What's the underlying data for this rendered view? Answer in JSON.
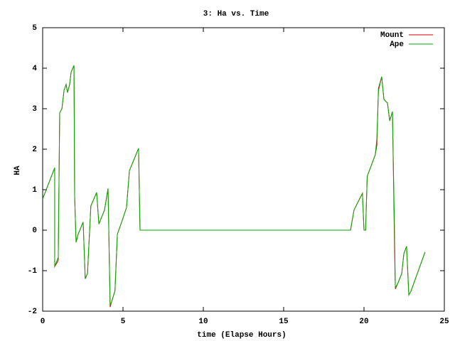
{
  "chart_data": {
    "type": "line",
    "title": "3: Ha vs. Time",
    "x_label": "time (Elapse Hours)",
    "y_label": "HA",
    "x": [
      0,
      0.75,
      0.75,
      0.97,
      1.06,
      1.2,
      1.33,
      1.46,
      1.55,
      1.68,
      1.77,
      1.95,
      1.99,
      2.08,
      2.21,
      2.52,
      2.65,
      2.79,
      3.0,
      3.36,
      3.5,
      3.85,
      4.07,
      4.2,
      4.29,
      4.5,
      4.65,
      4.96,
      5.22,
      5.4,
      5.97,
      6.06,
      19.16,
      19.38,
      19.9,
      20.0,
      20.1,
      20.2,
      20.7,
      20.8,
      20.9,
      21.1,
      21.24,
      21.46,
      21.6,
      21.77,
      21.9,
      21.95,
      22.12,
      22.35,
      22.48,
      22.65,
      22.79,
      22.92,
      23.8
    ],
    "series": [
      {
        "name": "Mount",
        "color": "#cc0000",
        "values": [
          0.77,
          1.54,
          -0.9,
          -0.75,
          2.9,
          3.0,
          3.45,
          3.6,
          3.4,
          3.6,
          3.9,
          4.07,
          0.85,
          -0.3,
          -0.1,
          0.2,
          -1.2,
          -1.07,
          0.6,
          0.93,
          0.15,
          0.5,
          1.03,
          -1.9,
          -1.77,
          -1.5,
          -0.1,
          0.25,
          0.56,
          1.47,
          2.02,
          0,
          0,
          0.5,
          0.91,
          0,
          0,
          1.33,
          1.86,
          2.1,
          3.5,
          3.79,
          3.23,
          3.14,
          2.7,
          2.93,
          -0.4,
          -1.45,
          -1.3,
          -1.07,
          -0.58,
          -0.4,
          -1.6,
          -1.51,
          -0.54
        ]
      },
      {
        "name": "Ape",
        "color": "#00aa00",
        "values": [
          0.77,
          1.54,
          -0.9,
          -0.67,
          2.9,
          3.0,
          3.45,
          3.6,
          3.4,
          3.6,
          3.9,
          4.07,
          0.85,
          -0.3,
          -0.1,
          0.2,
          -1.2,
          -1.07,
          0.6,
          0.93,
          0.15,
          0.5,
          1.03,
          -1.86,
          -1.77,
          -1.5,
          -0.1,
          0.25,
          0.56,
          1.47,
          2.02,
          0,
          0,
          0.5,
          0.91,
          0,
          0,
          1.33,
          1.86,
          2.26,
          3.44,
          3.79,
          3.23,
          3.14,
          2.7,
          2.93,
          0,
          -1.42,
          -1.3,
          -1.07,
          -0.58,
          -0.4,
          -1.6,
          -1.51,
          -0.54
        ]
      }
    ],
    "xlim": [
      0,
      25
    ],
    "xticks": [
      0,
      5,
      10,
      15,
      20,
      25
    ],
    "ylim": [
      -2,
      5
    ],
    "yticks": [
      -2,
      -1,
      0,
      1,
      2,
      3,
      4,
      5
    ],
    "grid": false,
    "legend": "upper right"
  }
}
